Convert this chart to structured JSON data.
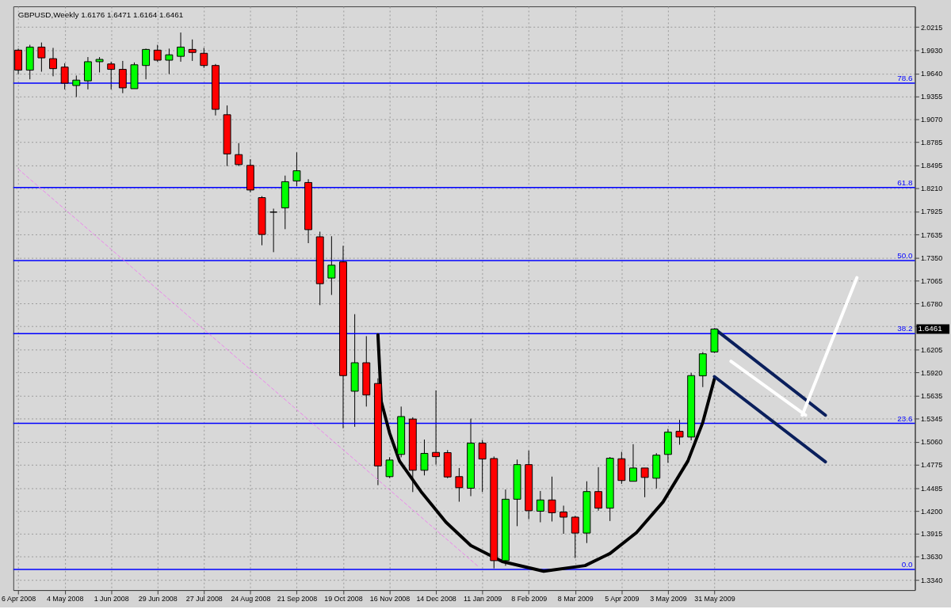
{
  "chart_data": {
    "type": "candlestick",
    "title": "GBPUSD,Weekly  1.6176 1.6471 1.6164 1.6461",
    "x": [
      "2008-04-06",
      "2008-04-13",
      "2008-04-20",
      "2008-04-27",
      "2008-05-04",
      "2008-05-11",
      "2008-05-18",
      "2008-05-25",
      "2008-06-01",
      "2008-06-08",
      "2008-06-15",
      "2008-06-22",
      "2008-06-29",
      "2008-07-06",
      "2008-07-13",
      "2008-07-20",
      "2008-07-27",
      "2008-08-03",
      "2008-08-10",
      "2008-08-17",
      "2008-08-24",
      "2008-08-31",
      "2008-09-07",
      "2008-09-14",
      "2008-09-21",
      "2008-09-28",
      "2008-10-05",
      "2008-10-12",
      "2008-10-19",
      "2008-10-26",
      "2008-11-02",
      "2008-11-09",
      "2008-11-16",
      "2008-11-23",
      "2008-11-30",
      "2008-12-07",
      "2008-12-14",
      "2008-12-21",
      "2008-12-28",
      "2009-01-04",
      "2009-01-11",
      "2009-01-18",
      "2009-01-25",
      "2009-02-01",
      "2009-02-08",
      "2009-02-15",
      "2009-02-22",
      "2009-03-01",
      "2009-03-08",
      "2009-03-15",
      "2009-03-22",
      "2009-03-29",
      "2009-04-05",
      "2009-04-12",
      "2009-04-19",
      "2009-04-26",
      "2009-05-03",
      "2009-05-10",
      "2009-05-17",
      "2009-05-24",
      "2009-05-31"
    ],
    "ohlc": [
      [
        1.9929,
        1.9948,
        1.9632,
        1.968
      ],
      [
        1.968,
        1.9995,
        1.9566,
        1.9967
      ],
      [
        1.9967,
        2.0024,
        1.9661,
        1.9833
      ],
      [
        1.9823,
        1.9957,
        1.9604,
        1.9699
      ],
      [
        1.9718,
        1.9766,
        1.9441,
        1.9518
      ],
      [
        1.9489,
        1.9613,
        1.9346,
        1.9556
      ],
      [
        1.9547,
        1.9843,
        1.9441,
        1.9785
      ],
      [
        1.9785,
        1.9843,
        1.9652,
        1.9814
      ],
      [
        1.9757,
        1.9785,
        1.9441,
        1.969
      ],
      [
        1.969,
        1.9795,
        1.9394,
        1.946
      ],
      [
        1.945,
        1.9776,
        1.945,
        1.9747
      ],
      [
        1.9738,
        1.9948,
        1.9566,
        1.9938
      ],
      [
        1.9929,
        1.9995,
        1.9785,
        1.9804
      ],
      [
        1.9804,
        1.9948,
        1.9632,
        1.9871
      ],
      [
        1.9852,
        2.0148,
        1.9785,
        1.9967
      ],
      [
        1.9938,
        2.0062,
        1.9795,
        1.99
      ],
      [
        1.989,
        1.9957,
        1.9709,
        1.9738
      ],
      [
        1.9738,
        1.9757,
        1.9117,
        1.9193
      ],
      [
        1.9126,
        1.9241,
        1.8487,
        1.8639
      ],
      [
        1.863,
        1.8773,
        1.8487,
        1.8506
      ],
      [
        1.8496,
        1.8572,
        1.8162,
        1.819
      ],
      [
        1.8095,
        1.8114,
        1.7503,
        1.7637
      ],
      [
        1.7915,
        1.7958,
        1.7417,
        1.7915
      ],
      [
        1.7968,
        1.8369,
        1.7703,
        1.8293
      ],
      [
        1.8302,
        1.8658,
        1.8235,
        1.8429
      ],
      [
        1.8283,
        1.8324,
        1.7529,
        1.7697
      ],
      [
        1.7608,
        1.7672,
        1.6758,
        1.7025
      ],
      [
        1.7095,
        1.7615,
        1.6885,
        1.7255
      ],
      [
        1.7296,
        1.7496,
        1.5227,
        1.5882
      ],
      [
        1.5688,
        1.6646,
        1.5246,
        1.6042
      ],
      [
        1.6042,
        1.6373,
        1.5497,
        1.5641
      ],
      [
        1.5784,
        1.5848,
        1.452,
        1.4759
      ],
      [
        1.4626,
        1.4867,
        1.4609,
        1.4832
      ],
      [
        1.4902,
        1.5497,
        1.4866,
        1.5373
      ],
      [
        1.5342,
        1.5364,
        1.4434,
        1.4705
      ],
      [
        1.4705,
        1.5087,
        1.4641,
        1.4915
      ],
      [
        1.4927,
        1.5698,
        1.4775,
        1.4874
      ],
      [
        1.4924,
        1.4956,
        1.4606,
        1.4622
      ],
      [
        1.4626,
        1.4733,
        1.4314,
        1.4488
      ],
      [
        1.4482,
        1.5347,
        1.4383,
        1.5043
      ],
      [
        1.5043,
        1.5082,
        1.4434,
        1.4845
      ],
      [
        1.4851,
        1.4876,
        1.3485,
        1.3581
      ],
      [
        1.3581,
        1.4466,
        1.3518,
        1.4345
      ],
      [
        1.4345,
        1.4838,
        1.401,
        1.4775
      ],
      [
        1.4775,
        1.495,
        1.4096,
        1.4202
      ],
      [
        1.4196,
        1.4447,
        1.4058,
        1.4336
      ],
      [
        1.4336,
        1.4626,
        1.4068,
        1.4177
      ],
      [
        1.4186,
        1.4265,
        1.3915,
        1.4122
      ],
      [
        1.4122,
        1.4138,
        1.3613,
        1.3924
      ],
      [
        1.3924,
        1.4568,
        1.38,
        1.444
      ],
      [
        1.444,
        1.4743,
        1.4202,
        1.4234
      ],
      [
        1.4234,
        1.487,
        1.4074,
        1.4855
      ],
      [
        1.4848,
        1.4934,
        1.4536,
        1.4578
      ],
      [
        1.4568,
        1.5029,
        1.4568,
        1.4733
      ],
      [
        1.4733,
        1.4733,
        1.437,
        1.4616
      ],
      [
        1.4606,
        1.4918,
        1.4478,
        1.4893
      ],
      [
        1.4902,
        1.522,
        1.4797,
        1.5179
      ],
      [
        1.5189,
        1.5332,
        1.5023,
        1.5118
      ],
      [
        1.5118,
        1.5915,
        1.5077,
        1.5882
      ],
      [
        1.5879,
        1.6175,
        1.5739,
        1.6153
      ],
      [
        1.6176,
        1.6471,
        1.6164,
        1.6461
      ]
    ],
    "colors": [
      "#ff0000",
      "#00ff00",
      "#ff0000",
      "#ff0000",
      "#ff0000",
      "#00ff00",
      "#00ff00",
      "#00ff00",
      "#ff0000",
      "#ff0000",
      "#00ff00",
      "#00ff00",
      "#ff0000",
      "#00ff00",
      "#00ff00",
      "#ff0000",
      "#ff0000",
      "#ff0000",
      "#ff0000",
      "#ff0000",
      "#ff0000",
      "#ff0000",
      "#000000",
      "#00ff00",
      "#00ff00",
      "#ff0000",
      "#ff0000",
      "#00ff00",
      "#ff0000",
      "#00ff00",
      "#ff0000",
      "#ff0000",
      "#00ff00",
      "#00ff00",
      "#ff0000",
      "#00ff00",
      "#ff0000",
      "#ff0000",
      "#ff0000",
      "#00ff00",
      "#ff0000",
      "#ff0000",
      "#00ff00",
      "#00ff00",
      "#ff0000",
      "#00ff00",
      "#ff0000",
      "#ff0000",
      "#ff0000",
      "#00ff00",
      "#ff0000",
      "#00ff00",
      "#ff0000",
      "#00ff00",
      "#ff0000",
      "#00ff00",
      "#00ff00",
      "#ff0000",
      "#00ff00",
      "#00ff00",
      "#00ff00"
    ],
    "series": [
      {
        "type": "line",
        "color": "#ee82ee",
        "line_style": "dashed",
        "x": [
          "2008-04-06",
          "2009-01-09"
        ],
        "values": [
          1.845,
          1.35
        ]
      },
      {
        "type": "line",
        "color": "#000000",
        "line_style": "solid",
        "x": [
          "2008-11-09",
          "2008-11-11",
          "2008-11-16",
          "2008-11-22",
          "2008-12-05",
          "2008-12-20",
          "2009-01-04",
          "2009-01-23",
          "2009-02-17",
          "2009-03-14",
          "2009-03-29",
          "2009-04-14",
          "2009-04-30",
          "2009-05-15",
          "2009-05-24",
          "2009-05-31"
        ],
        "values": [
          1.639,
          1.556,
          1.517,
          1.482,
          1.444,
          1.406,
          1.377,
          1.357,
          1.345,
          1.352,
          1.367,
          1.393,
          1.431,
          1.482,
          1.53,
          1.584
        ]
      },
      {
        "type": "line",
        "color": "#0a1f5c",
        "line_style": "solid",
        "x": [
          "2009-06-01",
          "2009-08-06"
        ],
        "values": [
          1.645,
          1.539
        ]
      },
      {
        "type": "line",
        "color": "#0a1f5c",
        "line_style": "solid",
        "x": [
          "2009-05-31",
          "2009-08-06"
        ],
        "values": [
          1.587,
          1.481
        ]
      },
      {
        "type": "line",
        "color": "#ffffff",
        "line_style": "solid",
        "x": [
          "2009-06-10",
          "2009-07-25"
        ],
        "values": [
          1.606,
          1.539
        ]
      },
      {
        "type": "line",
        "color": "#ffffff",
        "line_style": "solid",
        "x": [
          "2009-07-23",
          "2009-08-25"
        ],
        "values": [
          1.539,
          1.71
        ]
      }
    ],
    "ref_lines": [
      {
        "axis": "y",
        "value": 1.9518,
        "color": "#0000ff"
      },
      {
        "axis": "y",
        "value": 1.822,
        "color": "#0000ff"
      },
      {
        "axis": "y",
        "value": 1.7312,
        "color": "#0000ff"
      },
      {
        "axis": "y",
        "value": 1.6405,
        "color": "#0000ff"
      },
      {
        "axis": "y",
        "value": 1.5288,
        "color": "#0000ff"
      },
      {
        "axis": "y",
        "value": 1.3473,
        "color": "#0000ff"
      }
    ],
    "annotations": [
      "1.6461",
      {
        "text": "78.6",
        "x": "2009-09-29",
        "y": 1.9518
      },
      {
        "text": "61.8",
        "x": "2009-09-29",
        "y": 1.822
      },
      {
        "text": "50.0",
        "x": "2009-09-29",
        "y": 1.7312
      },
      {
        "text": "38.2",
        "x": "2009-09-29",
        "y": 1.6405
      },
      {
        "text": "23.6",
        "x": "2009-09-29",
        "y": 1.5288
      },
      {
        "text": "0.0",
        "x": "2009-09-29",
        "y": 1.3473
      }
    ],
    "xlim": [
      "2008-04-03",
      "2009-09-29"
    ],
    "xticks": [
      {
        "value": "2008-04-06",
        "label": "6 Apr 2008"
      },
      {
        "value": "2008-05-04",
        "label": "4 May 2008"
      },
      {
        "value": "2008-06-01",
        "label": "1 Jun 2008"
      },
      {
        "value": "2008-06-29",
        "label": "29 Jun 2008"
      },
      {
        "value": "2008-07-27",
        "label": "27 Jul 2008"
      },
      {
        "value": "2008-08-24",
        "label": "24 Aug 2008"
      },
      {
        "value": "2008-09-21",
        "label": "21 Sep 2008"
      },
      {
        "value": "2008-10-19",
        "label": "19 Oct 2008"
      },
      {
        "value": "2008-11-16",
        "label": "16 Nov 2008"
      },
      {
        "value": "2008-12-14",
        "label": "14 Dec 2008"
      },
      {
        "value": "2009-01-11",
        "label": "11 Jan 2009"
      },
      {
        "value": "2009-02-08",
        "label": "8 Feb 2009"
      },
      {
        "value": "2009-03-08",
        "label": "8 Mar 2009"
      },
      {
        "value": "2009-04-05",
        "label": "5 Apr 2009"
      },
      {
        "value": "2009-05-03",
        "label": "3 May 2009"
      },
      {
        "value": "2009-05-31",
        "label": "31 May 2009"
      }
    ],
    "ylim": [
      1.3215,
      2.0473
    ],
    "yticks": [
      2.0215,
      {
        "value": 1.993,
        "label": "1.9930"
      },
      {
        "value": 1.964,
        "label": "1.9640"
      },
      1.9355,
      {
        "value": 1.907,
        "label": "1.9070"
      },
      1.8785,
      1.8495,
      {
        "value": 1.821,
        "label": "1.8210"
      },
      1.7925,
      1.7635,
      {
        "value": 1.735,
        "label": "1.7350"
      },
      1.7065,
      {
        "value": 1.678,
        "label": "1.6780"
      },
      {
        "value": 1.6495,
        "label": null
      },
      1.6205,
      {
        "value": 1.592,
        "label": "1.5920"
      },
      1.5635,
      1.5345,
      {
        "value": 1.506,
        "label": "1.5060"
      },
      1.4775,
      1.4485,
      {
        "value": 1.42,
        "label": "1.4200"
      },
      1.3915,
      {
        "value": 1.363,
        "label": "1.3630"
      },
      {
        "value": 1.334,
        "label": "1.3340"
      }
    ],
    "grid": true
  }
}
